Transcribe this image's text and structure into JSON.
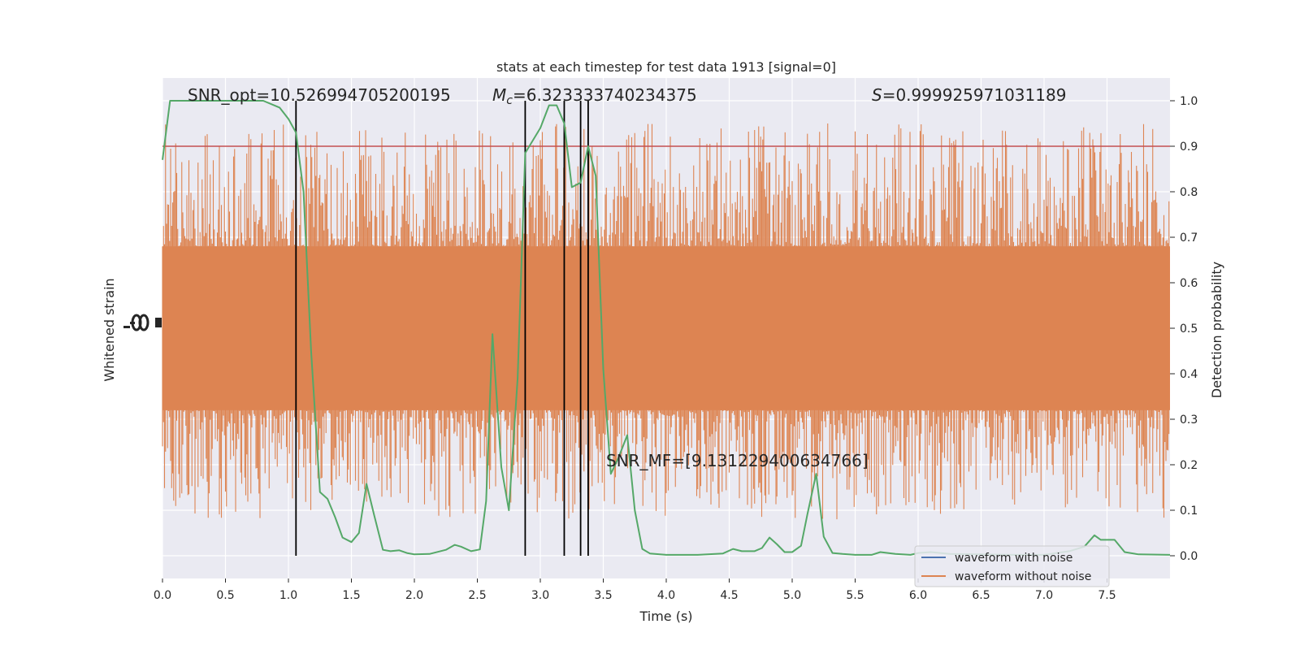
{
  "chart_data": {
    "type": "line",
    "title": "stats at each timestep for test data 1913 [signal=0]",
    "xlabel": "Time (s)",
    "ylabel_left": "Whitened strain",
    "ylabel_right": "Detection probability",
    "xlim": [
      0,
      8
    ],
    "ylim_right": [
      -0.05,
      1.05
    ],
    "grid": true,
    "x_ticks": [
      "0.0",
      "0.5",
      "1.0",
      "1.5",
      "2.0",
      "2.5",
      "3.0",
      "3.5",
      "4.0",
      "4.5",
      "5.0",
      "5.5",
      "6.0",
      "6.5",
      "7.0",
      "7.5"
    ],
    "x_tick_values": [
      0,
      0.5,
      1,
      1.5,
      2,
      2.5,
      3,
      3.5,
      4,
      4.5,
      5,
      5.5,
      6,
      6.5,
      7,
      7.5
    ],
    "y_ticks_right": [
      "0.0",
      "0.1",
      "0.2",
      "0.3",
      "0.4",
      "0.5",
      "0.6",
      "0.7",
      "0.8",
      "0.9",
      "1.0"
    ],
    "y_tick_values_right": [
      0,
      0.1,
      0.2,
      0.3,
      0.4,
      0.5,
      0.6,
      0.7,
      0.8,
      0.9,
      1.0
    ],
    "threshold": 0.9,
    "vertical_markers": [
      1.06,
      2.88,
      3.19,
      3.32,
      3.38
    ],
    "annotations": {
      "snr_opt": "SNR_opt=10.526994705200195",
      "mc": "=6.323333740234375",
      "s": "=0.999925971031189",
      "snr_mf": "SNR_MF=[9.131229400634766]"
    },
    "noise_band_right": {
      "core_low": 0.32,
      "core_high": 0.68,
      "spike_low": 0.08,
      "spike_high": 0.95
    },
    "series": [
      {
        "name": "waveform with noise",
        "color": "#4c72b0",
        "points": [
          [
            0.0,
            0.5
          ]
        ]
      },
      {
        "name": "waveform without noise",
        "color": "#dd8452",
        "points": []
      },
      {
        "color": "#55a868",
        "points": [
          [
            0.0,
            0.87
          ],
          [
            0.06,
            1.0
          ],
          [
            0.2,
            1.0
          ],
          [
            0.5,
            1.0
          ],
          [
            0.8,
            1.0
          ],
          [
            0.93,
            0.985
          ],
          [
            1.0,
            0.96
          ],
          [
            1.06,
            0.93
          ],
          [
            1.12,
            0.8
          ],
          [
            1.18,
            0.45
          ],
          [
            1.25,
            0.14
          ],
          [
            1.31,
            0.125
          ],
          [
            1.37,
            0.085
          ],
          [
            1.43,
            0.04
          ],
          [
            1.5,
            0.03
          ],
          [
            1.56,
            0.05
          ],
          [
            1.62,
            0.158
          ],
          [
            1.68,
            0.09
          ],
          [
            1.75,
            0.013
          ],
          [
            1.81,
            0.01
          ],
          [
            1.88,
            0.012
          ],
          [
            1.94,
            0.006
          ],
          [
            2.0,
            0.003
          ],
          [
            2.12,
            0.004
          ],
          [
            2.25,
            0.013
          ],
          [
            2.32,
            0.024
          ],
          [
            2.37,
            0.02
          ],
          [
            2.45,
            0.01
          ],
          [
            2.52,
            0.014
          ],
          [
            2.57,
            0.12
          ],
          [
            2.62,
            0.487
          ],
          [
            2.69,
            0.195
          ],
          [
            2.75,
            0.1
          ],
          [
            2.82,
            0.39
          ],
          [
            2.88,
            0.885
          ],
          [
            3.0,
            0.94
          ],
          [
            3.07,
            0.99
          ],
          [
            3.13,
            0.99
          ],
          [
            3.19,
            0.95
          ],
          [
            3.25,
            0.81
          ],
          [
            3.32,
            0.82
          ],
          [
            3.38,
            0.9
          ],
          [
            3.44,
            0.835
          ],
          [
            3.5,
            0.41
          ],
          [
            3.56,
            0.18
          ],
          [
            3.62,
            0.215
          ],
          [
            3.69,
            0.265
          ],
          [
            3.75,
            0.1
          ],
          [
            3.81,
            0.015
          ],
          [
            3.87,
            0.005
          ],
          [
            4.0,
            0.002
          ],
          [
            4.25,
            0.002
          ],
          [
            4.45,
            0.005
          ],
          [
            4.53,
            0.015
          ],
          [
            4.6,
            0.01
          ],
          [
            4.7,
            0.01
          ],
          [
            4.76,
            0.017
          ],
          [
            4.82,
            0.04
          ],
          [
            4.88,
            0.025
          ],
          [
            4.94,
            0.008
          ],
          [
            5.0,
            0.008
          ],
          [
            5.07,
            0.022
          ],
          [
            5.12,
            0.09
          ],
          [
            5.19,
            0.18
          ],
          [
            5.25,
            0.042
          ],
          [
            5.32,
            0.006
          ],
          [
            5.4,
            0.004
          ],
          [
            5.5,
            0.002
          ],
          [
            5.63,
            0.002
          ],
          [
            5.7,
            0.008
          ],
          [
            5.82,
            0.004
          ],
          [
            5.94,
            0.002
          ],
          [
            6.0,
            0.006
          ],
          [
            6.1,
            0.008
          ],
          [
            6.25,
            0.004
          ],
          [
            6.5,
            0.003
          ],
          [
            6.75,
            0.002
          ],
          [
            7.0,
            0.002
          ],
          [
            7.2,
            0.01
          ],
          [
            7.32,
            0.02
          ],
          [
            7.4,
            0.045
          ],
          [
            7.45,
            0.035
          ],
          [
            7.56,
            0.035
          ],
          [
            7.64,
            0.008
          ],
          [
            7.75,
            0.003
          ],
          [
            8.0,
            0.002
          ]
        ]
      }
    ],
    "legend": {
      "placement": "lower-right",
      "entries": [
        "waveform with noise",
        "waveform without noise"
      ]
    }
  }
}
